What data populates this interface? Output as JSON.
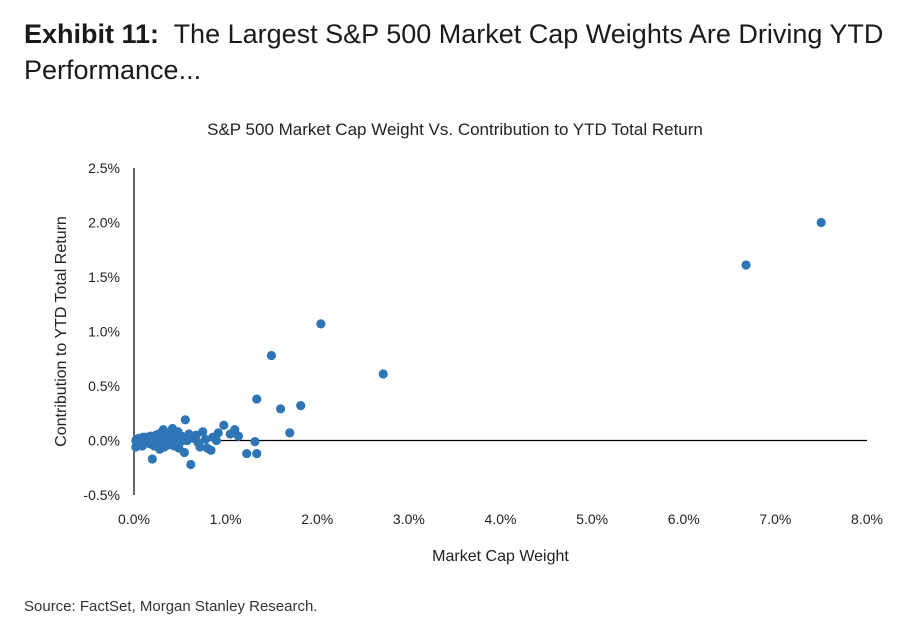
{
  "header": {
    "exhibit_label": "Exhibit 11:",
    "title": "The Largest S&P 500 Market Cap Weights Are Driving YTD Performance..."
  },
  "footer": {
    "source": "Source: FactSet, Morgan Stanley Research."
  },
  "colors": {
    "point": "#2e75b6",
    "axis": "#000000",
    "text": "#222222"
  },
  "chart_data": {
    "type": "scatter",
    "title": "S&P 500 Market Cap Weight Vs. Contribution to YTD Total Return",
    "xlabel": "Market Cap Weight",
    "ylabel": "Contribution to YTD Total Return",
    "xlim": [
      0,
      8
    ],
    "ylim": [
      -0.5,
      2.5
    ],
    "unit": "%",
    "x_ticks": [
      "0.0%",
      "1.0%",
      "2.0%",
      "3.0%",
      "4.0%",
      "5.0%",
      "6.0%",
      "7.0%",
      "8.0%"
    ],
    "y_ticks": [
      "-0.5%",
      "0.0%",
      "0.5%",
      "1.0%",
      "1.5%",
      "2.0%",
      "2.5%"
    ],
    "grid": false,
    "legend": "none",
    "points": [
      {
        "x": 7.5,
        "y": 2.0
      },
      {
        "x": 6.68,
        "y": 1.61
      },
      {
        "x": 2.04,
        "y": 1.07
      },
      {
        "x": 2.72,
        "y": 0.61
      },
      {
        "x": 1.5,
        "y": 0.78
      },
      {
        "x": 1.34,
        "y": 0.38
      },
      {
        "x": 1.6,
        "y": 0.29
      },
      {
        "x": 1.82,
        "y": 0.32
      },
      {
        "x": 1.7,
        "y": 0.07
      },
      {
        "x": 1.32,
        "y": -0.01
      },
      {
        "x": 1.23,
        "y": -0.12
      },
      {
        "x": 1.34,
        "y": -0.12
      },
      {
        "x": 1.1,
        "y": 0.1
      },
      {
        "x": 1.14,
        "y": 0.04
      },
      {
        "x": 1.05,
        "y": 0.06
      },
      {
        "x": 0.98,
        "y": 0.14
      },
      {
        "x": 0.92,
        "y": 0.07
      },
      {
        "x": 0.86,
        "y": 0.03
      },
      {
        "x": 0.84,
        "y": -0.09
      },
      {
        "x": 0.78,
        "y": 0.01
      },
      {
        "x": 0.75,
        "y": 0.08
      },
      {
        "x": 0.72,
        "y": -0.06
      },
      {
        "x": 0.68,
        "y": 0.05
      },
      {
        "x": 0.65,
        "y": 0.02
      },
      {
        "x": 0.62,
        "y": -0.22
      },
      {
        "x": 0.6,
        "y": 0.06
      },
      {
        "x": 0.58,
        "y": 0.0
      },
      {
        "x": 0.56,
        "y": 0.19
      },
      {
        "x": 0.55,
        "y": -0.11
      },
      {
        "x": 0.52,
        "y": 0.04
      },
      {
        "x": 0.5,
        "y": -0.02
      },
      {
        "x": 0.48,
        "y": 0.08
      },
      {
        "x": 0.46,
        "y": 0.01
      },
      {
        "x": 0.44,
        "y": -0.05
      },
      {
        "x": 0.42,
        "y": 0.11
      },
      {
        "x": 0.4,
        "y": 0.03
      },
      {
        "x": 0.38,
        "y": -0.04
      },
      {
        "x": 0.36,
        "y": 0.06
      },
      {
        "x": 0.34,
        "y": 0.0
      },
      {
        "x": 0.32,
        "y": 0.1
      },
      {
        "x": 0.3,
        "y": -0.02
      },
      {
        "x": 0.3,
        "y": 0.04
      },
      {
        "x": 0.28,
        "y": -0.08
      },
      {
        "x": 0.26,
        "y": 0.02
      },
      {
        "x": 0.24,
        "y": 0.05
      },
      {
        "x": 0.22,
        "y": -0.05
      },
      {
        "x": 0.2,
        "y": -0.17
      },
      {
        "x": 0.2,
        "y": 0.01
      },
      {
        "x": 0.18,
        "y": 0.04
      },
      {
        "x": 0.16,
        "y": -0.02
      },
      {
        "x": 0.14,
        "y": 0.02
      },
      {
        "x": 0.12,
        "y": -0.01
      },
      {
        "x": 0.1,
        "y": 0.03
      },
      {
        "x": 0.08,
        "y": -0.03
      },
      {
        "x": 0.06,
        "y": 0.01
      },
      {
        "x": 0.04,
        "y": -0.01
      },
      {
        "x": 0.02,
        "y": 0.0
      },
      {
        "x": 0.02,
        "y": -0.06
      },
      {
        "x": 0.05,
        "y": 0.02
      },
      {
        "x": 0.09,
        "y": -0.05
      },
      {
        "x": 0.13,
        "y": 0.03
      },
      {
        "x": 0.17,
        "y": -0.03
      },
      {
        "x": 0.23,
        "y": 0.01
      },
      {
        "x": 0.27,
        "y": 0.06
      },
      {
        "x": 0.33,
        "y": -0.06
      },
      {
        "x": 0.37,
        "y": 0.02
      },
      {
        "x": 0.41,
        "y": -0.01
      },
      {
        "x": 0.45,
        "y": 0.04
      },
      {
        "x": 0.49,
        "y": -0.07
      },
      {
        "x": 0.53,
        "y": 0.0
      },
      {
        "x": 0.63,
        "y": 0.03
      },
      {
        "x": 0.7,
        "y": -0.02
      },
      {
        "x": 0.8,
        "y": -0.07
      },
      {
        "x": 0.9,
        "y": 0.0
      }
    ]
  }
}
